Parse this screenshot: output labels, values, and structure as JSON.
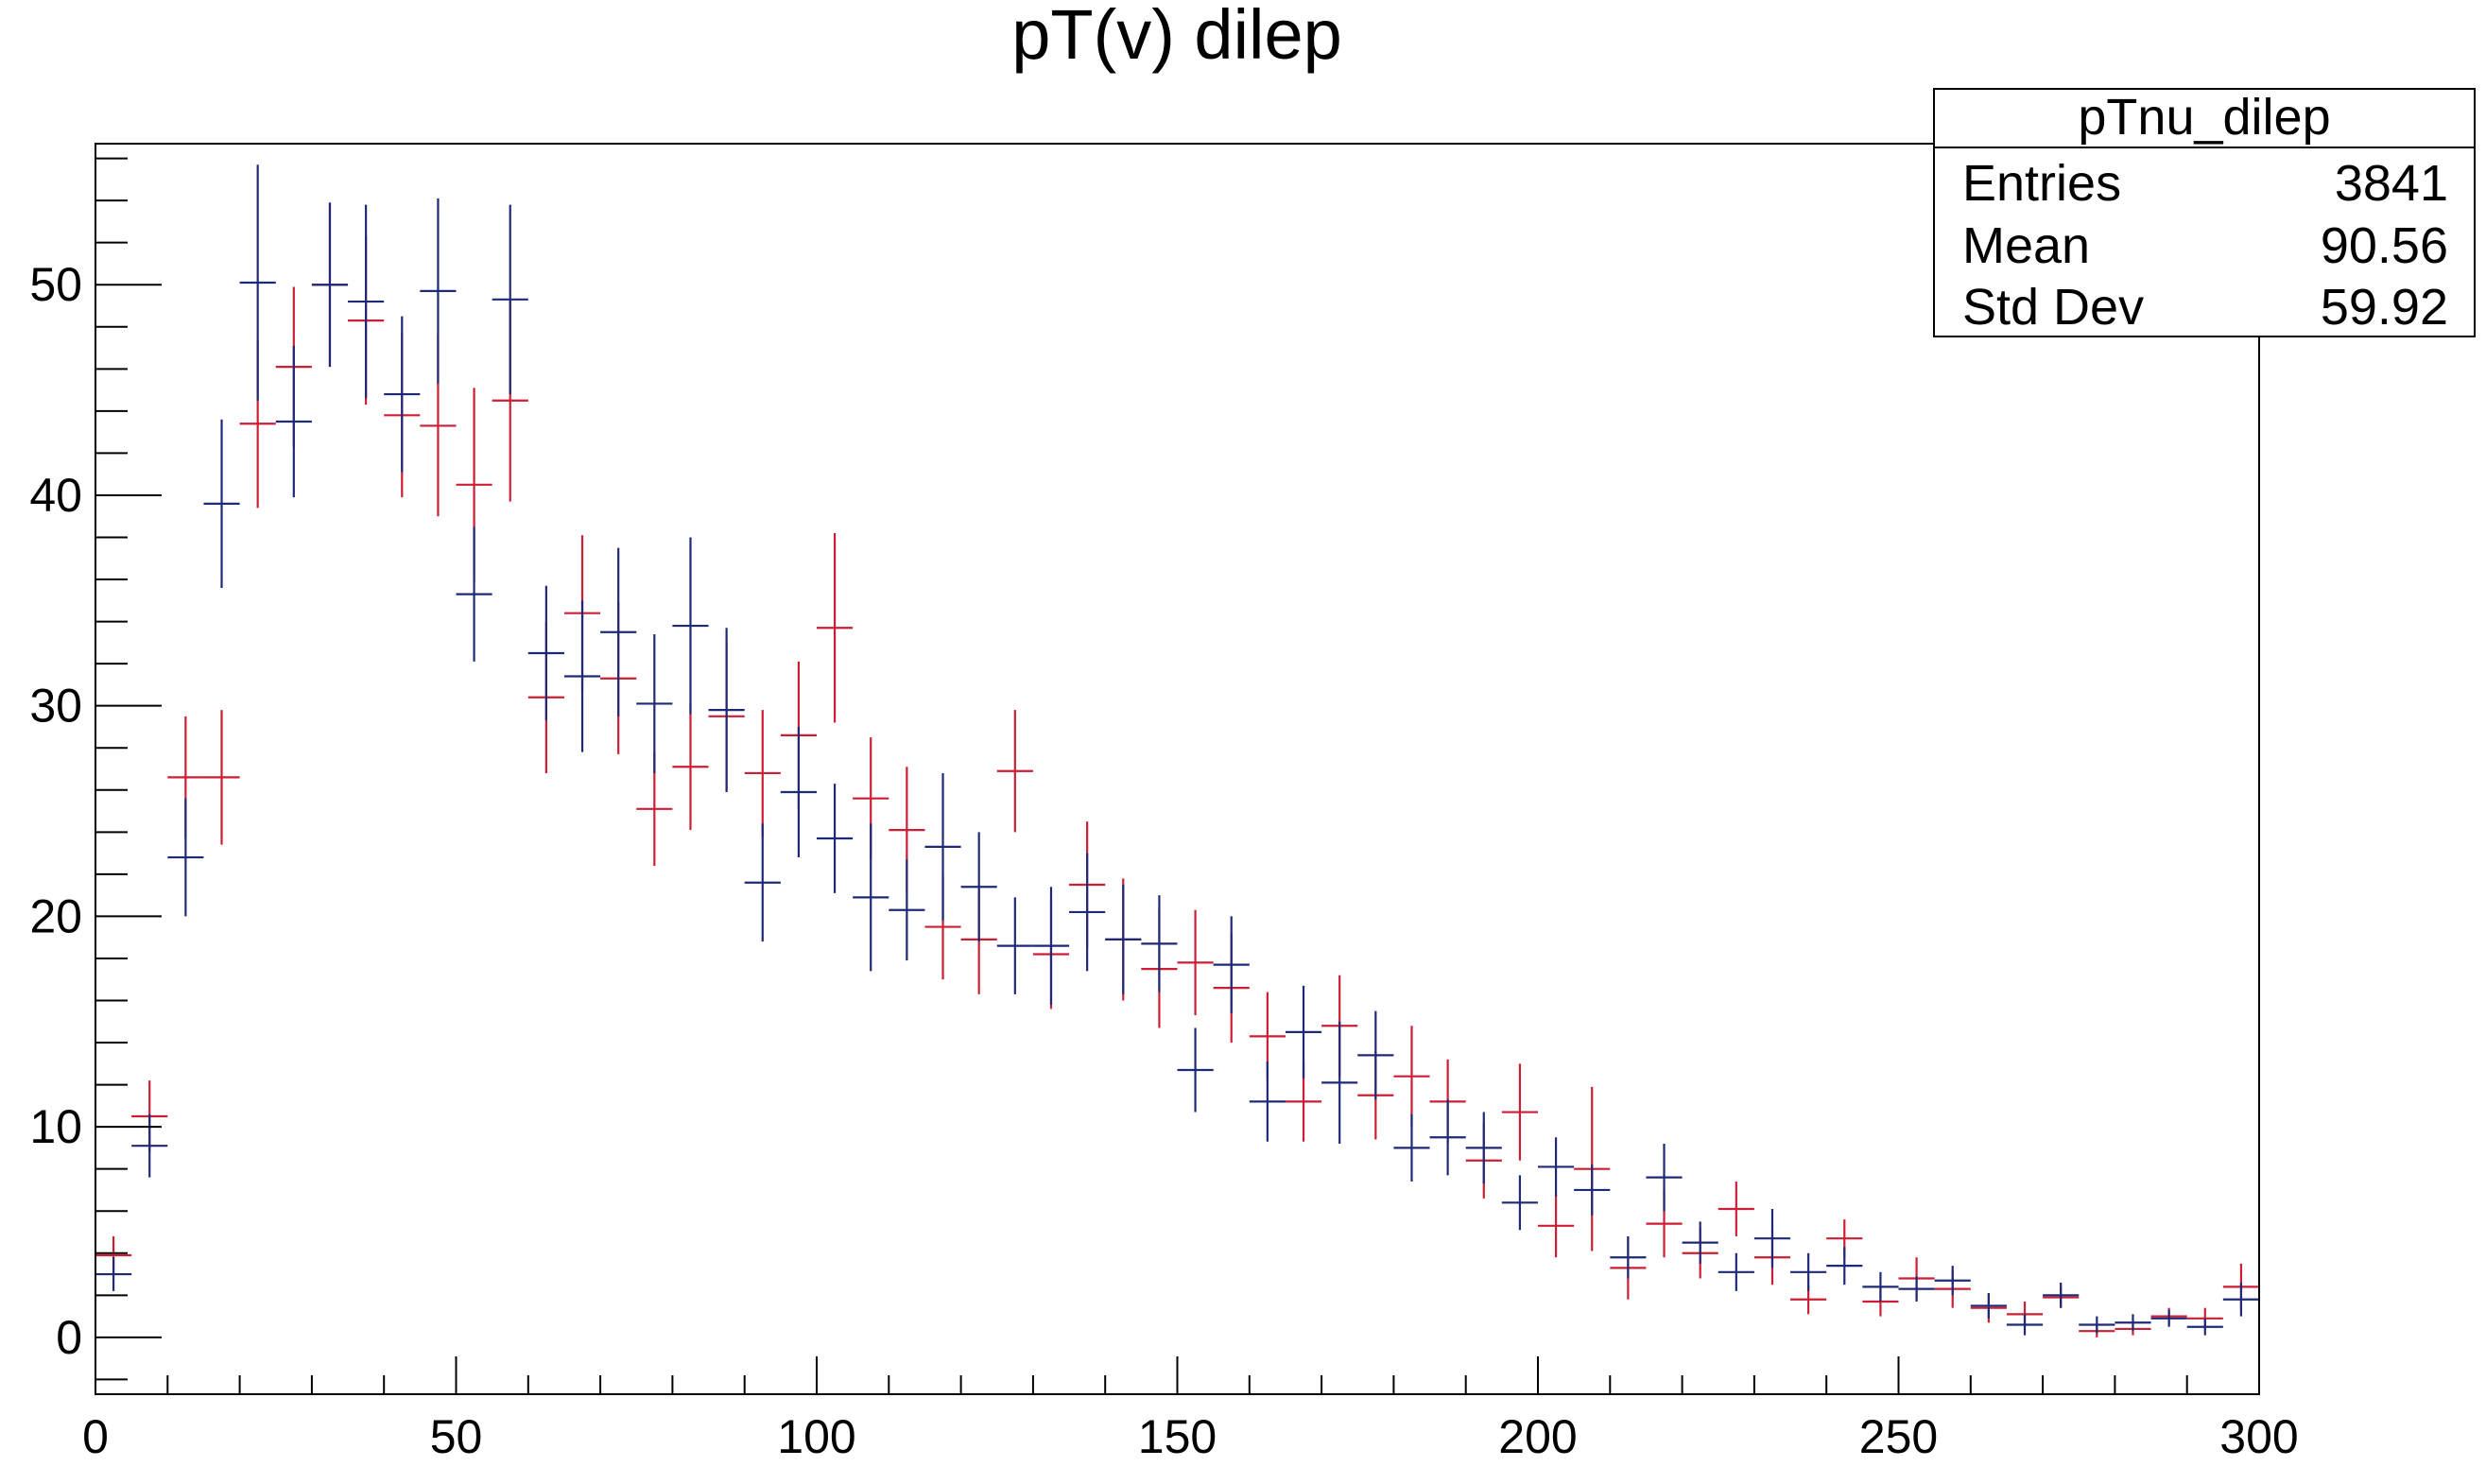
{
  "chart_data": {
    "type": "scatter",
    "title": "pT(v) dilep",
    "xlabel": "",
    "ylabel": "",
    "xlim": [
      0,
      300
    ],
    "ylim": [
      -2.7,
      56.7
    ],
    "grid": false,
    "legend": "none",
    "x_ticks": [
      0,
      50,
      100,
      150,
      200,
      250,
      300
    ],
    "y_ticks": [
      0,
      10,
      20,
      30,
      40,
      50
    ],
    "bin_width": 5,
    "stats_box": {
      "name": "pTnu_dilep",
      "rows": [
        {
          "label": "Entries",
          "value": "3841"
        },
        {
          "label": "Mean",
          "value": "90.56"
        },
        {
          "label": "Std Dev",
          "value": "59.92"
        }
      ]
    },
    "series": [
      {
        "color": "#cc1f35",
        "x": [
          2.5,
          7.5,
          12.5,
          17.5,
          22.5,
          27.5,
          32.5,
          37.5,
          42.5,
          47.5,
          52.5,
          57.5,
          62.5,
          67.5,
          72.5,
          77.5,
          82.5,
          87.5,
          92.5,
          97.5,
          102.5,
          107.5,
          112.5,
          117.5,
          122.5,
          127.5,
          132.5,
          137.5,
          142.5,
          147.5,
          152.5,
          157.5,
          162.5,
          167.5,
          172.5,
          177.5,
          182.5,
          187.5,
          192.5,
          197.5,
          202.5,
          207.5,
          212.5,
          217.5,
          222.5,
          227.5,
          232.5,
          237.5,
          242.5,
          247.5,
          252.5,
          257.5,
          262.5,
          267.5,
          272.5,
          277.5,
          282.5,
          287.5,
          292.5,
          297.5
        ],
        "values": [
          3.9,
          10.5,
          26.6,
          26.6,
          43.4,
          46.1,
          50.0,
          48.3,
          43.8,
          43.3,
          40.5,
          44.5,
          30.4,
          34.4,
          31.3,
          25.1,
          27.1,
          29.5,
          26.8,
          28.6,
          33.7,
          25.6,
          24.1,
          19.5,
          18.9,
          26.9,
          18.2,
          21.5,
          18.9,
          17.5,
          17.8,
          16.6,
          14.3,
          11.2,
          14.8,
          11.5,
          12.4,
          11.2,
          8.4,
          10.7,
          5.3,
          8.0,
          3.3,
          5.4,
          4.0,
          6.1,
          3.8,
          1.8,
          4.7,
          1.7,
          2.8,
          2.3,
          1.4,
          1.1,
          1.9,
          0.3,
          0.4,
          1.0,
          0.9,
          2.4
        ],
        "errors": [
          0.9,
          1.7,
          2.9,
          3.2,
          4.0,
          3.8,
          3.9,
          4.0,
          3.9,
          4.3,
          4.6,
          4.8,
          3.6,
          3.7,
          3.6,
          2.7,
          3.0,
          3.5,
          3.0,
          3.5,
          4.5,
          2.9,
          3.0,
          2.5,
          2.6,
          2.9,
          2.6,
          3.0,
          2.9,
          2.8,
          2.5,
          2.6,
          2.1,
          1.9,
          2.4,
          2.1,
          2.4,
          2.0,
          1.8,
          2.3,
          1.5,
          3.9,
          1.5,
          1.6,
          1.2,
          1.3,
          1.3,
          0.7,
          0.9,
          0.7,
          1.0,
          0.9,
          0.7,
          0.6,
          0.5,
          0.3,
          0.3,
          0.4,
          0.5,
          1.1
        ]
      },
      {
        "color": "#1e2a78",
        "x": [
          2.5,
          7.5,
          12.5,
          17.5,
          22.5,
          27.5,
          32.5,
          37.5,
          42.5,
          47.5,
          52.5,
          57.5,
          62.5,
          67.5,
          72.5,
          77.5,
          82.5,
          87.5,
          92.5,
          97.5,
          102.5,
          107.5,
          112.5,
          117.5,
          122.5,
          127.5,
          132.5,
          137.5,
          142.5,
          147.5,
          152.5,
          157.5,
          162.5,
          167.5,
          172.5,
          177.5,
          182.5,
          187.5,
          192.5,
          197.5,
          202.5,
          207.5,
          212.5,
          217.5,
          222.5,
          227.5,
          232.5,
          237.5,
          242.5,
          247.5,
          252.5,
          257.5,
          262.5,
          267.5,
          272.5,
          277.5,
          282.5,
          287.5,
          292.5,
          297.5
        ],
        "values": [
          3.0,
          9.1,
          22.8,
          39.6,
          50.1,
          43.5,
          50.0,
          49.2,
          44.8,
          49.7,
          35.3,
          49.3,
          32.5,
          31.4,
          33.5,
          30.1,
          33.8,
          29.8,
          21.6,
          25.9,
          23.7,
          20.9,
          20.3,
          23.3,
          21.4,
          18.6,
          18.6,
          20.2,
          18.9,
          18.7,
          12.7,
          17.7,
          11.2,
          14.5,
          12.1,
          13.4,
          9.0,
          9.5,
          9.0,
          6.4,
          8.1,
          7.0,
          3.8,
          7.6,
          4.5,
          3.1,
          4.7,
          3.1,
          3.4,
          2.4,
          2.3,
          2.7,
          1.5,
          0.6,
          2.0,
          0.6,
          0.7,
          0.9,
          0.5,
          1.8
        ],
        "errors": [
          0.8,
          1.5,
          2.8,
          4.0,
          5.6,
          3.6,
          3.9,
          4.6,
          3.7,
          4.4,
          3.2,
          4.5,
          3.2,
          3.6,
          4.0,
          3.3,
          4.2,
          3.9,
          2.8,
          3.1,
          2.6,
          3.5,
          2.4,
          3.5,
          2.6,
          2.3,
          2.8,
          2.8,
          2.6,
          2.3,
          2.0,
          2.3,
          1.9,
          2.2,
          2.9,
          2.1,
          1.6,
          1.8,
          1.7,
          1.3,
          1.4,
          1.2,
          1.0,
          1.6,
          1.0,
          0.9,
          1.4,
          0.9,
          0.9,
          0.7,
          0.6,
          0.7,
          0.6,
          0.5,
          0.6,
          0.4,
          0.4,
          0.4,
          0.4,
          0.8
        ]
      }
    ]
  }
}
